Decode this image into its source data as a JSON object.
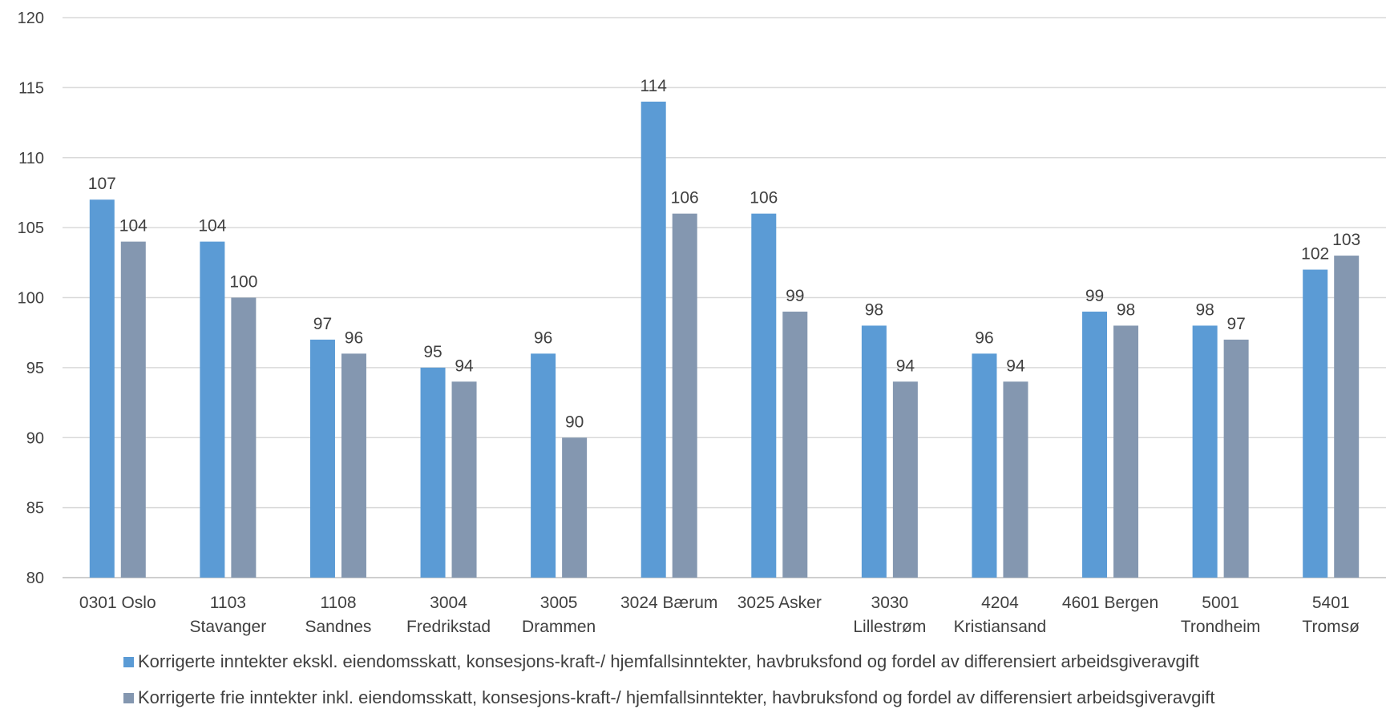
{
  "chart_data": {
    "type": "bar",
    "title": "",
    "xlabel": "",
    "ylabel": "",
    "ylim": [
      80,
      120
    ],
    "yticks": [
      80,
      85,
      90,
      95,
      100,
      105,
      110,
      115,
      120
    ],
    "grid": true,
    "legend_position": "bottom",
    "categories": [
      [
        "0301 Oslo"
      ],
      [
        "1103",
        "Stavanger"
      ],
      [
        "1108",
        "Sandnes"
      ],
      [
        "3004",
        "Fredrikstad"
      ],
      [
        "3005",
        "Drammen"
      ],
      [
        "3024 Bærum"
      ],
      [
        "3025 Asker"
      ],
      [
        "3030",
        "Lillestrøm"
      ],
      [
        "4204",
        "Kristiansand"
      ],
      [
        "4601 Bergen"
      ],
      [
        "5001",
        "Trondheim"
      ],
      [
        "5401",
        "Tromsø"
      ]
    ],
    "series": [
      {
        "name": "Korrigerte inntekter ekskl. eiendomsskatt, konsesjons-kraft-/ hjemfallsinntekter, havbruksfond og fordel av differensiert arbeidsgiveravgift",
        "color": "#5b9bd5",
        "values": [
          107,
          104,
          97,
          95,
          96,
          114,
          106,
          98,
          96,
          99,
          98,
          102
        ]
      },
      {
        "name": "Korrigerte frie inntekter inkl. eiendomsskatt, konsesjons-kraft-/ hjemfallsinntekter, havbruksfond og fordel av differensiert arbeidsgiveravgift",
        "color": "#8497b0",
        "values": [
          104,
          100,
          96,
          94,
          90,
          106,
          99,
          94,
          94,
          98,
          97,
          103
        ]
      }
    ]
  }
}
